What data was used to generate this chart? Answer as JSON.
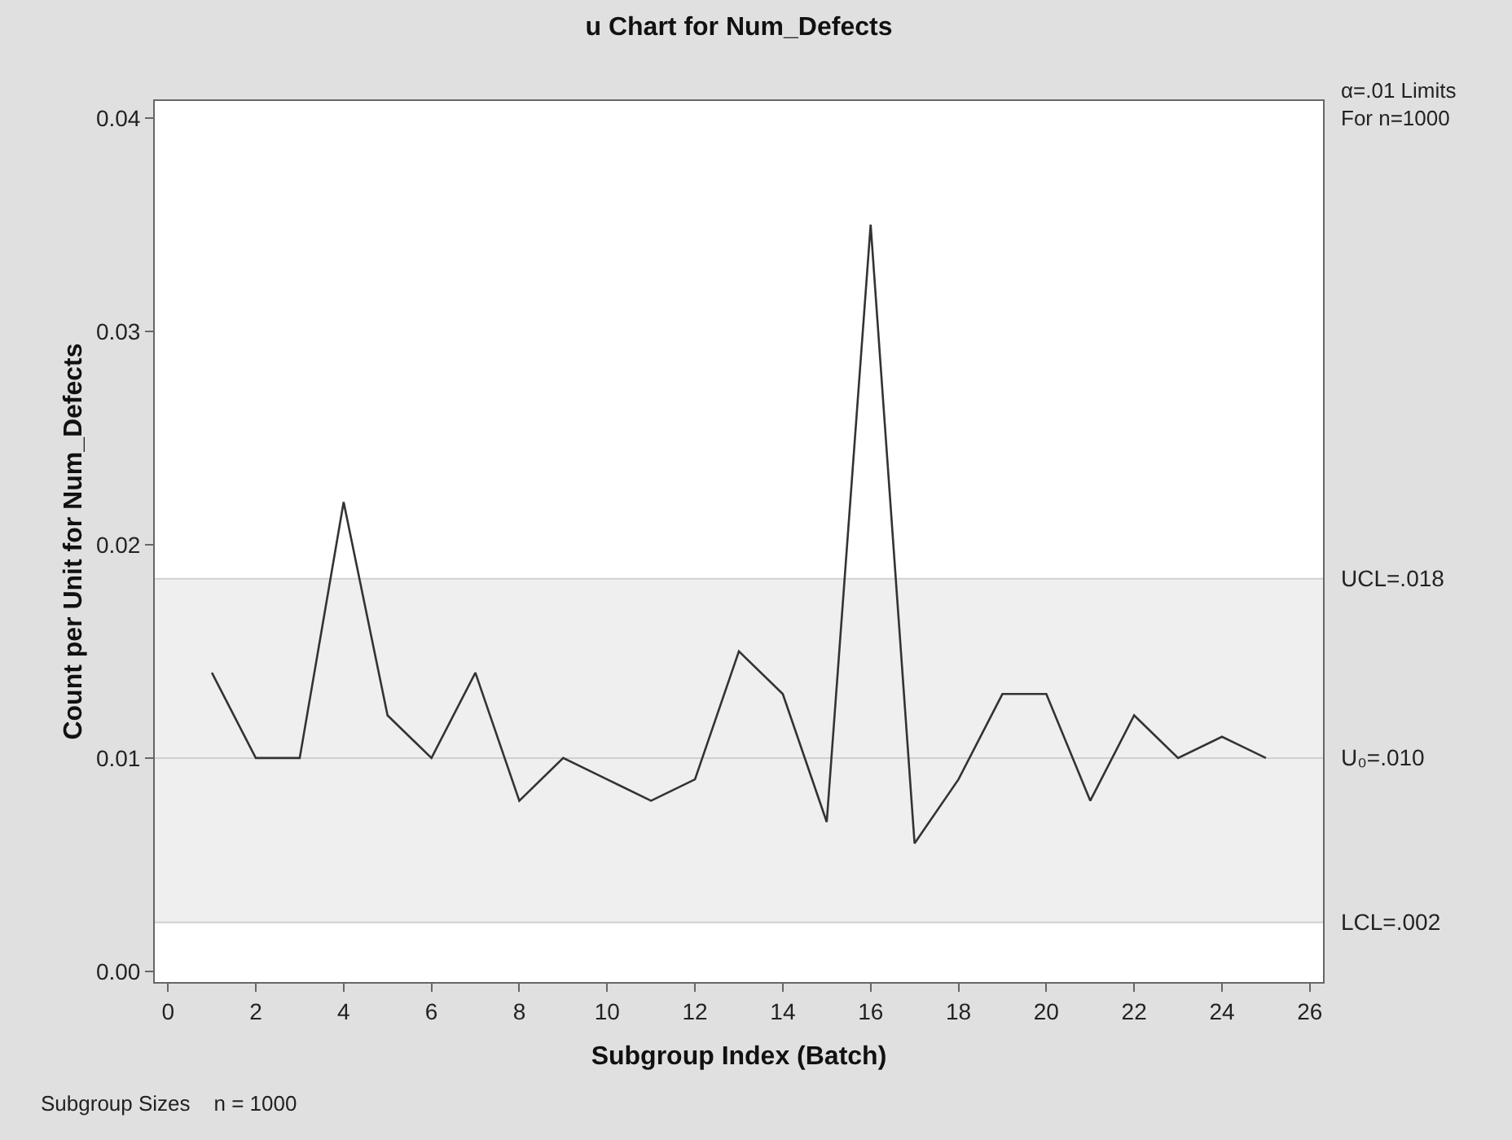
{
  "chart_data": {
    "type": "line",
    "title": "u Chart for Num_Defects",
    "xlabel": "Subgroup Index (Batch)",
    "ylabel": "Count per Unit for Num_Defects",
    "x": [
      1,
      2,
      3,
      4,
      5,
      6,
      7,
      8,
      9,
      10,
      11,
      12,
      13,
      14,
      15,
      16,
      17,
      18,
      19,
      20,
      21,
      22,
      23,
      24,
      25
    ],
    "series": [
      {
        "color": "#333333",
        "values": [
          0.014,
          0.01,
          0.01,
          0.022,
          0.012,
          0.01,
          0.014,
          0.008,
          0.01,
          0.009,
          0.008,
          0.009,
          0.015,
          0.013,
          0.007,
          0.035,
          0.006,
          0.009,
          0.013,
          0.013,
          0.008,
          0.012,
          0.01,
          0.011,
          0.01
        ]
      }
    ],
    "xlim": [
      -0.3,
      26.3
    ],
    "xticks": [
      0,
      2,
      4,
      6,
      8,
      10,
      12,
      14,
      16,
      18,
      20,
      22,
      24,
      26
    ],
    "ylim": [
      -0.0005,
      0.0408
    ],
    "yticks": [
      {
        "value": 0,
        "label": "0.00"
      },
      {
        "value": 0.01,
        "label": "0.01"
      },
      {
        "value": 0.02,
        "label": "0.02"
      },
      {
        "value": 0.03,
        "label": "0.03"
      },
      {
        "value": 0.04,
        "label": "0.04"
      }
    ],
    "bands": [
      {
        "axis": "y",
        "from": 0.0023,
        "to": 0.0184,
        "color": "#efefef"
      }
    ],
    "ref_lines": [
      {
        "axis": "y",
        "value": 0.0184,
        "label": "UCL=.018",
        "color": "#d0d0d0"
      },
      {
        "axis": "y",
        "value": 0.01,
        "label": "U₀=.010",
        "color": "#d0d0d0"
      },
      {
        "axis": "y",
        "value": 0.0023,
        "label": "LCL=.002",
        "color": "#d0d0d0"
      }
    ],
    "annotations": [
      "α=.01 Limits\nFor n=1000",
      "Subgroup Sizes    n = 1000"
    ],
    "grid": false,
    "marker": "none",
    "line_style": "solid"
  }
}
